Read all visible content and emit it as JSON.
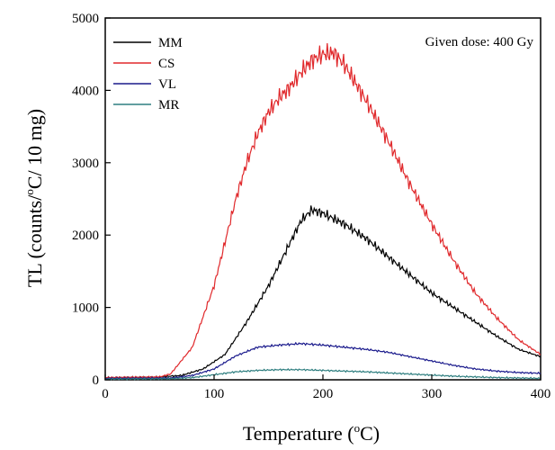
{
  "chart_data": {
    "type": "line",
    "title": "",
    "annotation": "Given dose: 400 Gy",
    "xlabel": {
      "main": "Temperature (",
      "sup": "o",
      "end": "C)"
    },
    "ylabel": {
      "main": "TL (counts/",
      "sup": "o",
      "end": "C/ 10 mg)"
    },
    "xlim": [
      0,
      400
    ],
    "ylim": [
      0,
      5000
    ],
    "x_ticks": [
      0,
      100,
      200,
      300,
      400
    ],
    "y_ticks": [
      0,
      1000,
      2000,
      3000,
      4000,
      5000
    ],
    "grid": false,
    "legend_position": "top-left",
    "series": [
      {
        "name": "MM",
        "color": "#000000",
        "x": [
          0,
          50,
          70,
          90,
          110,
          130,
          150,
          170,
          180,
          190,
          200,
          220,
          240,
          260,
          280,
          300,
          320,
          340,
          360,
          380,
          400
        ],
        "y": [
          30,
          40,
          60,
          150,
          350,
          800,
          1300,
          1900,
          2200,
          2350,
          2300,
          2150,
          1950,
          1700,
          1450,
          1200,
          1000,
          800,
          600,
          420,
          320
        ]
      },
      {
        "name": "CS",
        "color": "#e0282b",
        "x": [
          0,
          50,
          60,
          80,
          100,
          110,
          120,
          130,
          140,
          150,
          160,
          170,
          180,
          190,
          200,
          210,
          220,
          240,
          260,
          280,
          300,
          320,
          340,
          360,
          380,
          400
        ],
        "y": [
          30,
          40,
          80,
          450,
          1300,
          1900,
          2500,
          3000,
          3400,
          3700,
          3900,
          4050,
          4250,
          4420,
          4500,
          4520,
          4350,
          3850,
          3300,
          2700,
          2150,
          1650,
          1200,
          850,
          550,
          350
        ]
      },
      {
        "name": "VL",
        "color": "#1a1a8c",
        "x": [
          0,
          60,
          80,
          100,
          120,
          140,
          160,
          180,
          200,
          220,
          240,
          260,
          280,
          300,
          320,
          340,
          360,
          380,
          400
        ],
        "y": [
          20,
          25,
          60,
          150,
          330,
          450,
          480,
          500,
          480,
          450,
          420,
          380,
          320,
          260,
          200,
          150,
          120,
          100,
          90
        ]
      },
      {
        "name": "MR",
        "color": "#2f7f80",
        "x": [
          0,
          60,
          80,
          100,
          120,
          140,
          160,
          180,
          200,
          220,
          240,
          260,
          280,
          300,
          320,
          340,
          360,
          380,
          400
        ],
        "y": [
          10,
          15,
          30,
          70,
          110,
          130,
          140,
          140,
          130,
          120,
          110,
          95,
          80,
          65,
          50,
          40,
          30,
          25,
          20
        ]
      }
    ]
  }
}
